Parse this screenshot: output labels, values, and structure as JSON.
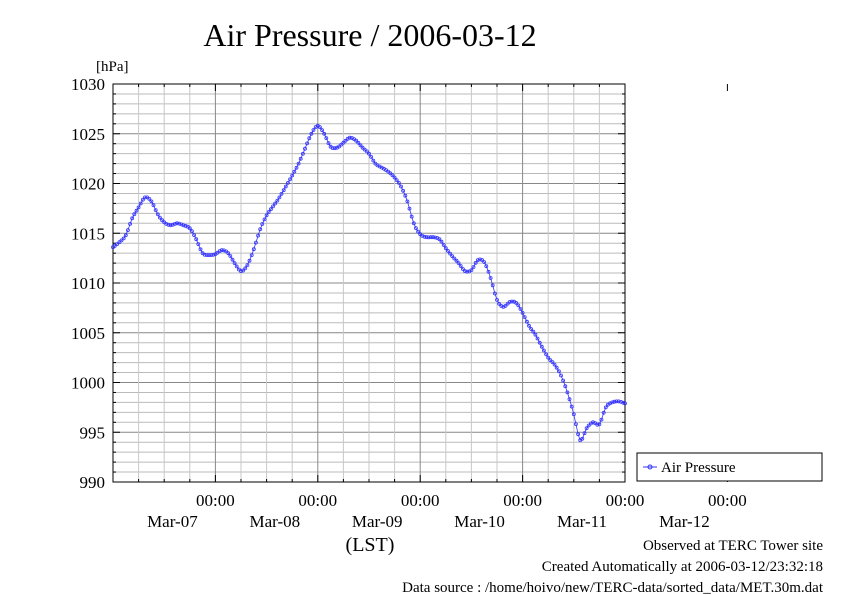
{
  "chart_data": {
    "type": "line",
    "title": "Air Pressure / 2006-03-12",
    "ylabel": "[hPa]",
    "xlabel": "(LST)",
    "ylim": [
      990,
      1030
    ],
    "yticks": [
      990,
      995,
      1000,
      1005,
      1010,
      1015,
      1020,
      1025,
      1030
    ],
    "ytick_labels": [
      "990",
      "995",
      "1000",
      "1005",
      "1010",
      "1015",
      "1020",
      "1025",
      "1030"
    ],
    "xlim": [
      "2006-03-06 00:00",
      "2006-03-12 00:00"
    ],
    "xticks": [
      {
        "time": "00:00",
        "date": "Mar-07"
      },
      {
        "time": "00:00",
        "date": "Mar-08"
      },
      {
        "time": "00:00",
        "date": "Mar-09"
      },
      {
        "time": "00:00",
        "date": "Mar-10"
      },
      {
        "time": "00:00",
        "date": "Mar-11"
      },
      {
        "time": "00:00",
        "date": "Mar-12"
      }
    ],
    "grid": true,
    "legend_placement": "right",
    "series": [
      {
        "name": "Air Pressure",
        "color": "#3333ff",
        "marker": "circle",
        "points": [
          [
            "03-06 00:00",
            1013.6
          ],
          [
            "03-06 01:30",
            1014.1
          ],
          [
            "03-06 03:00",
            1014.8
          ],
          [
            "03-06 04:30",
            1016.5
          ],
          [
            "03-06 06:00",
            1017.6
          ],
          [
            "03-06 07:30",
            1018.6
          ],
          [
            "03-06 09:00",
            1018.2
          ],
          [
            "03-06 10:30",
            1016.9
          ],
          [
            "03-06 12:00",
            1016.1
          ],
          [
            "03-06 13:30",
            1015.8
          ],
          [
            "03-06 15:00",
            1016.0
          ],
          [
            "03-06 16:30",
            1015.8
          ],
          [
            "03-06 18:00",
            1015.5
          ],
          [
            "03-06 19:30",
            1014.4
          ],
          [
            "03-06 21:00",
            1013.0
          ],
          [
            "03-06 22:30",
            1012.8
          ],
          [
            "03-07 00:00",
            1012.9
          ],
          [
            "03-07 01:30",
            1013.3
          ],
          [
            "03-07 03:00",
            1013.0
          ],
          [
            "03-07 04:30",
            1012.0
          ],
          [
            "03-07 06:00",
            1011.2
          ],
          [
            "03-07 07:30",
            1011.8
          ],
          [
            "03-07 09:00",
            1013.4
          ],
          [
            "03-07 10:30",
            1015.4
          ],
          [
            "03-07 12:00",
            1016.8
          ],
          [
            "03-07 13:30",
            1017.7
          ],
          [
            "03-07 15:00",
            1018.6
          ],
          [
            "03-07 16:30",
            1019.7
          ],
          [
            "03-07 18:00",
            1020.8
          ],
          [
            "03-07 19:30",
            1022.0
          ],
          [
            "03-07 21:00",
            1023.5
          ],
          [
            "03-07 22:30",
            1025.0
          ],
          [
            "03-08 00:00",
            1025.8
          ],
          [
            "03-08 01:30",
            1025.0
          ],
          [
            "03-08 03:00",
            1023.7
          ],
          [
            "03-08 04:30",
            1023.6
          ],
          [
            "03-08 06:00",
            1024.1
          ],
          [
            "03-08 07:30",
            1024.6
          ],
          [
            "03-08 09:00",
            1024.3
          ],
          [
            "03-08 10:30",
            1023.6
          ],
          [
            "03-08 12:00",
            1023.0
          ],
          [
            "03-08 13:30",
            1022.0
          ],
          [
            "03-08 15:00",
            1021.6
          ],
          [
            "03-08 16:30",
            1021.2
          ],
          [
            "03-08 18:00",
            1020.6
          ],
          [
            "03-08 19:30",
            1019.7
          ],
          [
            "03-08 21:00",
            1018.2
          ],
          [
            "03-08 22:30",
            1016.0
          ],
          [
            "03-09 00:00",
            1014.9
          ],
          [
            "03-09 01:30",
            1014.6
          ],
          [
            "03-09 03:00",
            1014.6
          ],
          [
            "03-09 04:30",
            1014.4
          ],
          [
            "03-09 06:00",
            1013.5
          ],
          [
            "03-09 07:30",
            1012.7
          ],
          [
            "03-09 09:00",
            1012.0
          ],
          [
            "03-09 10:30",
            1011.2
          ],
          [
            "03-09 12:00",
            1011.3
          ],
          [
            "03-09 13:30",
            1012.3
          ],
          [
            "03-09 15:00",
            1012.1
          ],
          [
            "03-09 16:30",
            1010.5
          ],
          [
            "03-09 18:00",
            1008.3
          ],
          [
            "03-09 19:30",
            1007.6
          ],
          [
            "03-09 21:00",
            1008.1
          ],
          [
            "03-09 22:30",
            1008.0
          ],
          [
            "03-10 00:00",
            1007.0
          ],
          [
            "03-10 01:30",
            1005.7
          ],
          [
            "03-10 03:00",
            1004.8
          ],
          [
            "03-10 04:30",
            1003.6
          ],
          [
            "03-10 06:00",
            1002.5
          ],
          [
            "03-10 07:30",
            1001.8
          ],
          [
            "03-10 09:00",
            1000.7
          ],
          [
            "03-10 10:30",
            999.0
          ],
          [
            "03-10 12:00",
            996.8
          ],
          [
            "03-10 13:30",
            994.2
          ],
          [
            "03-10 15:00",
            995.4
          ],
          [
            "03-10 16:30",
            996.0
          ],
          [
            "03-10 18:00",
            995.8
          ],
          [
            "03-10 19:30",
            997.5
          ],
          [
            "03-10 21:00",
            998.0
          ],
          [
            "03-10 22:30",
            998.1
          ],
          [
            "03-11 00:00",
            997.9
          ]
        ]
      }
    ]
  },
  "legend": {
    "label": "Air Pressure"
  },
  "footer": {
    "site": "Observed at TERC Tower site",
    "created": "Created Automatically at 2006-03-12/23:32:18",
    "source": "Data source : /home/hoivo/new/TERC-data/sorted_data/MET.30m.dat"
  }
}
